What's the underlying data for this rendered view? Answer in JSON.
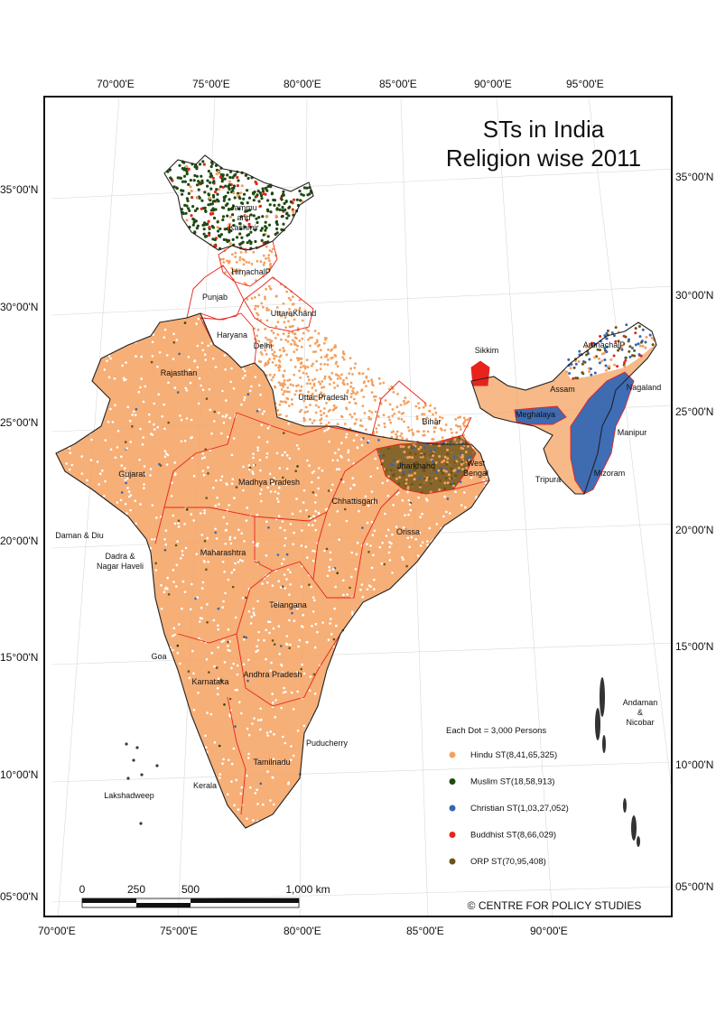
{
  "title": {
    "line1": "STs in India",
    "line2": "Religion wise 2011"
  },
  "graticule": {
    "top_labels": [
      "70°00'E",
      "75°00'E",
      "80°00'E",
      "85°00'E",
      "90°00'E",
      "95°00'E"
    ],
    "bottom_labels": [
      "70°00'E",
      "75°00'E",
      "80°00'E",
      "85°00'E",
      "90°00'E"
    ],
    "left_labels": [
      "35°00'N",
      "30°00'N",
      "25°00'N",
      "20°00'N",
      "15°00'N",
      "10°00'N",
      "05°00'N"
    ],
    "right_labels": [
      "35°00'N",
      "30°00'N",
      "25°00'N",
      "20°00'N",
      "15°00'N",
      "10°00'N",
      "05°00'N"
    ]
  },
  "places": [
    {
      "id": "jk1",
      "text": "Jammu"
    },
    {
      "id": "jk2",
      "text": "and"
    },
    {
      "id": "jk3",
      "text": "Kashmir"
    },
    {
      "id": "hp",
      "text": "HimachalP"
    },
    {
      "id": "pb",
      "text": "Punjab"
    },
    {
      "id": "uk",
      "text": "UttaraKhand"
    },
    {
      "id": "hr",
      "text": "Haryana"
    },
    {
      "id": "dl",
      "text": "Delhi"
    },
    {
      "id": "rj",
      "text": "Rajasthan"
    },
    {
      "id": "up",
      "text": "Uttar Pradesh"
    },
    {
      "id": "sk",
      "text": "Sikkim"
    },
    {
      "id": "ar",
      "text": "ArunachalP"
    },
    {
      "id": "as",
      "text": "Assam"
    },
    {
      "id": "nl",
      "text": "Nagaland"
    },
    {
      "id": "ml",
      "text": "Meghalaya"
    },
    {
      "id": "br",
      "text": "Bihar"
    },
    {
      "id": "mn",
      "text": "Manipur"
    },
    {
      "id": "jh",
      "text": "Jharkhand"
    },
    {
      "id": "wb1",
      "text": "West"
    },
    {
      "id": "wb2",
      "text": "Bengal"
    },
    {
      "id": "gj",
      "text": "Gujarat"
    },
    {
      "id": "mp",
      "text": "Madhya Pradesh"
    },
    {
      "id": "mz",
      "text": "Mizoram"
    },
    {
      "id": "tr",
      "text": "Tripura"
    },
    {
      "id": "cg",
      "text": "Chhattisgarh"
    },
    {
      "id": "od",
      "text": "Orissa"
    },
    {
      "id": "dd",
      "text": "Daman & Diu"
    },
    {
      "id": "dn1",
      "text": "Dadra &"
    },
    {
      "id": "dn2",
      "text": "Nagar Haveli"
    },
    {
      "id": "mh",
      "text": "Maharashtra"
    },
    {
      "id": "tg",
      "text": "Telangana"
    },
    {
      "id": "ga",
      "text": "Goa"
    },
    {
      "id": "ap",
      "text": "Andhra Pradesh"
    },
    {
      "id": "ka",
      "text": "Karnataka"
    },
    {
      "id": "an1",
      "text": "Andaman"
    },
    {
      "id": "an2",
      "text": "&"
    },
    {
      "id": "an3",
      "text": "Nicobar"
    },
    {
      "id": "py",
      "text": "Puducherry"
    },
    {
      "id": "tn",
      "text": "Tamilnadu"
    },
    {
      "id": "kl",
      "text": "Kerala"
    },
    {
      "id": "ld",
      "text": "Lakshadweep"
    }
  ],
  "legend": {
    "heading": "Each Dot  = 3,000 Persons",
    "items": [
      {
        "label": "Hindu ST(8,41,65,325)",
        "color": "#f4a15f"
      },
      {
        "label": "Muslim ST(18,58,913)",
        "color": "#1f4a12"
      },
      {
        "label": "Christian ST(1,03,27,052)",
        "color": "#3566b3"
      },
      {
        "label": "Buddhist ST(8,66,029)",
        "color": "#e8231c"
      },
      {
        "label": "ORP ST(70,95,408)",
        "color": "#6b5418"
      }
    ]
  },
  "scale_bar": {
    "labels": [
      "0",
      "250",
      "500",
      "1,000 km"
    ]
  },
  "credit": "© CENTRE FOR POLICY STUDIES",
  "colors": {
    "hindu": "#f4a15f",
    "muslim": "#1f4a12",
    "christian": "#3566b3",
    "buddhist": "#e8231c",
    "orp": "#6b5418",
    "state_border": "#e8231c",
    "country_border": "#222222"
  }
}
